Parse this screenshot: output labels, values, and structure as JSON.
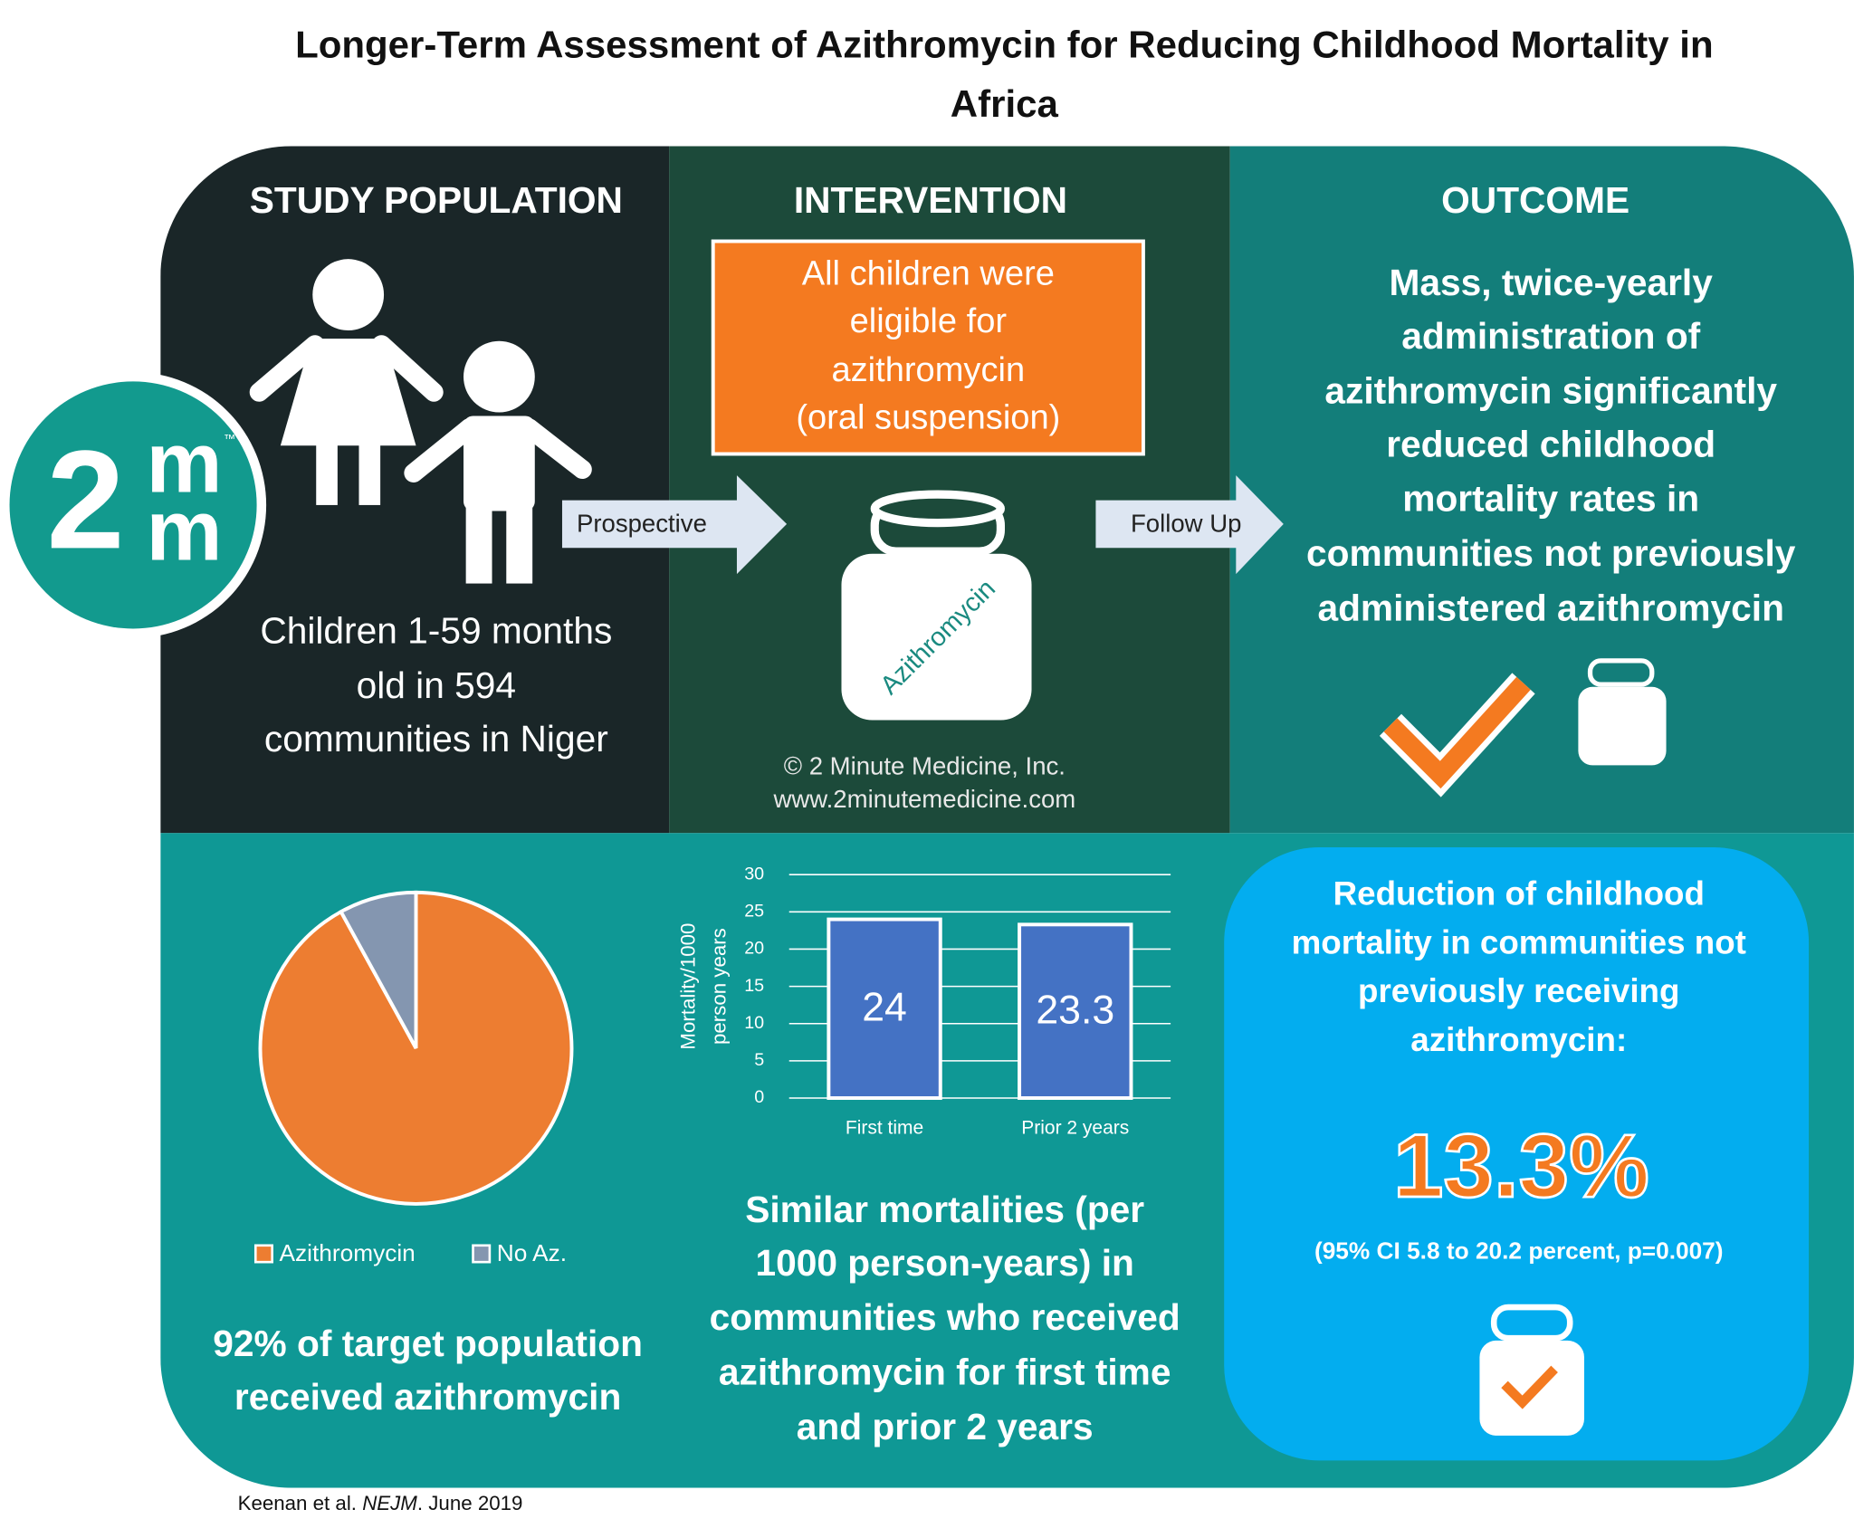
{
  "title": [
    "Longer-Term Assessment of Azithromycin for Reducing Childhood Mortality in",
    "Africa"
  ],
  "logo": {
    "digit": "2",
    "letters": [
      "m",
      "m"
    ],
    "mark": "™"
  },
  "study_population": {
    "heading": "STUDY POPULATION",
    "text": [
      "Children 1-59 months",
      "old in 594",
      "communities in Niger"
    ]
  },
  "arrows": [
    "Prospective",
    "Follow Up"
  ],
  "intervention": {
    "heading": "INTERVENTION",
    "box": [
      "All children were",
      "eligible for",
      "azithromycin",
      "(oral suspension)"
    ],
    "bottle_label": "Azithromycin",
    "copyright": "© 2 Minute Medicine, Inc.",
    "website": "www.2minutemedicine.com"
  },
  "outcome": {
    "heading": "OUTCOME",
    "text": [
      "Mass, twice-yearly",
      "administration of",
      "azithromycin significantly",
      "reduced childhood",
      "mortality rates in",
      "communities not previously",
      "administered azithromycin"
    ]
  },
  "pie_caption": [
    "92% of target population",
    "received azithromycin"
  ],
  "bar_caption": [
    "Similar mortalities (per",
    "1000 person-years) in",
    "communities who received",
    "azithromycin for first time",
    "and prior 2 years"
  ],
  "result": {
    "text": [
      "Reduction of childhood",
      "mortality in communities not",
      "previously receiving",
      "azithromycin:"
    ],
    "value": "13.3%",
    "ci": "(95% CI 5.8 to 20.2 percent, p=0.007)"
  },
  "citation": {
    "authors": "Keenan et al. ",
    "journal": "NEJM",
    "date": ". June 2019"
  },
  "chart_data": [
    {
      "type": "pie",
      "categories": [
        "Azithromycin",
        "No Az."
      ],
      "values": [
        92,
        8
      ],
      "colors": [
        "#ed7d31",
        "#8496b0"
      ],
      "legend": "bottom"
    },
    {
      "type": "bar",
      "y_label": [
        "Mortality/1000",
        "person years"
      ],
      "categories": [
        "First time",
        "Prior 2 years"
      ],
      "values": [
        24,
        23.3
      ],
      "color": "#4472c4",
      "ylim": [
        0,
        30
      ],
      "yticks": [
        0,
        5,
        10,
        15,
        20,
        25,
        30
      ],
      "grid": true
    }
  ]
}
